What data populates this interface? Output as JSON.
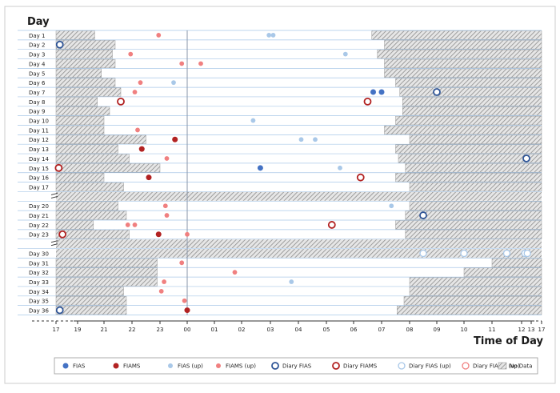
{
  "chart_data": {
    "type": "scatter",
    "ylabel": "Day",
    "xlabel": "Time of Day",
    "x_ticks": [
      "17",
      "19",
      "21",
      "22",
      "23",
      "00",
      "01",
      "02",
      "03",
      "04",
      "05",
      "06",
      "07",
      "08",
      "09",
      "10",
      "11",
      "12",
      "13",
      "17"
    ],
    "rows": [
      {
        "label": "Day 1",
        "nodata": [
          [
            17,
            20.3
          ],
          [
            6.65,
            17
          ]
        ]
      },
      {
        "label": "Day 2",
        "nodata": [
          [
            17,
            21.4
          ],
          [
            7.1,
            17
          ]
        ]
      },
      {
        "label": "Day 3",
        "nodata": [
          [
            17,
            21.3
          ],
          [
            6.85,
            17
          ]
        ]
      },
      {
        "label": "Day 4",
        "nodata": [
          [
            17,
            21.4
          ],
          [
            7.1,
            17
          ]
        ]
      },
      {
        "label": "Day 5",
        "nodata": [
          [
            17,
            20.8
          ],
          [
            7.1,
            17
          ]
        ]
      },
      {
        "label": "Day 6",
        "nodata": [
          [
            17,
            21.4
          ],
          [
            7.5,
            17
          ]
        ]
      },
      {
        "label": "Day 7",
        "nodata": [
          [
            17,
            21.6
          ],
          [
            7.65,
            17
          ]
        ]
      },
      {
        "label": "Day 8",
        "nodata": [
          [
            17,
            20.5
          ],
          [
            7.75,
            17
          ]
        ]
      },
      {
        "label": "Day 9",
        "nodata": [
          [
            17,
            21.2
          ],
          [
            7.75,
            17
          ]
        ]
      },
      {
        "label": "Day 10",
        "nodata": [
          [
            17,
            21.0
          ],
          [
            7.5,
            17
          ]
        ]
      },
      {
        "label": "Day 11",
        "nodata": [
          [
            17,
            21.0
          ],
          [
            7.1,
            17
          ]
        ]
      },
      {
        "label": "Day 12",
        "nodata": [
          [
            17,
            22.5
          ],
          [
            8.0,
            17
          ]
        ]
      },
      {
        "label": "Day 13",
        "nodata": [
          [
            17,
            21.5
          ],
          [
            7.5,
            17
          ]
        ]
      },
      {
        "label": "Day 14",
        "nodata": [
          [
            17,
            21.9
          ],
          [
            7.6,
            17
          ]
        ]
      },
      {
        "label": "Day 15",
        "nodata": [
          [
            17,
            23.0
          ],
          [
            7.85,
            17
          ]
        ]
      },
      {
        "label": "Day 16",
        "nodata": [
          [
            17,
            21.0
          ],
          [
            7.5,
            17
          ]
        ]
      },
      {
        "label": "Day 17",
        "nodata": [
          [
            17,
            21.7
          ],
          [
            8.0,
            17
          ]
        ]
      },
      {
        "label": "",
        "nodata": [
          [
            17,
            17
          ]
        ],
        "break": true
      },
      {
        "label": "Day 20",
        "nodata": [
          [
            17,
            21.5
          ],
          [
            8.0,
            17
          ]
        ]
      },
      {
        "label": "Day 21",
        "nodata": [
          [
            17,
            21.8
          ],
          [
            7.85,
            17
          ]
        ]
      },
      {
        "label": "Day 22",
        "nodata": [
          [
            17,
            20.2
          ],
          [
            7.5,
            17
          ]
        ]
      },
      {
        "label": "Day 23",
        "nodata": [
          [
            17,
            21.9
          ],
          [
            7.85,
            17
          ]
        ]
      },
      {
        "label": "",
        "nodata": [
          [
            17,
            17
          ]
        ],
        "break": true
      },
      {
        "label": "Day 30",
        "nodata": [
          [
            17,
            17
          ]
        ]
      },
      {
        "label": "Day 31",
        "nodata": [
          [
            17,
            22.9
          ],
          [
            11.0,
            17
          ]
        ]
      },
      {
        "label": "Day 32",
        "nodata": [
          [
            17,
            22.9
          ],
          [
            10.0,
            17
          ]
        ]
      },
      {
        "label": "Day 33",
        "nodata": [
          [
            17,
            22.9
          ],
          [
            8.0,
            17
          ]
        ]
      },
      {
        "label": "Day 34",
        "nodata": [
          [
            17,
            21.7
          ],
          [
            8.0,
            17
          ]
        ]
      },
      {
        "label": "Day 35",
        "nodata": [
          [
            17,
            21.8
          ],
          [
            7.8,
            17
          ]
        ]
      },
      {
        "label": "Day 36",
        "nodata": [
          [
            17,
            21.8
          ],
          [
            7.55,
            17
          ]
        ]
      }
    ],
    "points": [
      {
        "day": "Day 1",
        "time": 22.95,
        "type": "fiams_up"
      },
      {
        "day": "Day 1",
        "time": 2.95,
        "type": "fias_up"
      },
      {
        "day": "Day 1",
        "time": 3.1,
        "type": "fias_up"
      },
      {
        "day": "Day 2",
        "time": 17.35,
        "type": "diary_fias"
      },
      {
        "day": "Day 3",
        "time": 21.95,
        "type": "fiams_up"
      },
      {
        "day": "Day 3",
        "time": 5.7,
        "type": "fias_up"
      },
      {
        "day": "Day 4",
        "time": 23.8,
        "type": "fiams_up"
      },
      {
        "day": "Day 4",
        "time": 0.5,
        "type": "fiams_up"
      },
      {
        "day": "Day 6",
        "time": 22.3,
        "type": "fiams_up"
      },
      {
        "day": "Day 6",
        "time": 23.5,
        "type": "fias_up"
      },
      {
        "day": "Day 7",
        "time": 22.1,
        "type": "fiams_up"
      },
      {
        "day": "Day 7",
        "time": 6.7,
        "type": "fias"
      },
      {
        "day": "Day 7",
        "time": 7.0,
        "type": "fias"
      },
      {
        "day": "Day 7",
        "time": 9.0,
        "type": "diary_fias"
      },
      {
        "day": "Day 8",
        "time": 21.6,
        "type": "diary_fiams"
      },
      {
        "day": "Day 8",
        "time": 6.5,
        "type": "diary_fiams"
      },
      {
        "day": "Day 10",
        "time": 2.4,
        "type": "fias_up"
      },
      {
        "day": "Day 11",
        "time": 22.2,
        "type": "fiams_up"
      },
      {
        "day": "Day 12",
        "time": 23.55,
        "type": "fiams"
      },
      {
        "day": "Day 12",
        "time": 4.1,
        "type": "fias_up"
      },
      {
        "day": "Day 12",
        "time": 4.6,
        "type": "fias_up"
      },
      {
        "day": "Day 13",
        "time": 22.35,
        "type": "fiams"
      },
      {
        "day": "Day 14",
        "time": 23.25,
        "type": "fiams_up"
      },
      {
        "day": "Day 14",
        "time": 12.5,
        "type": "diary_fias"
      },
      {
        "day": "Day 15",
        "time": 17.25,
        "type": "diary_fiams"
      },
      {
        "day": "Day 15",
        "time": 2.65,
        "type": "fias"
      },
      {
        "day": "Day 15",
        "time": 5.5,
        "type": "fias_up"
      },
      {
        "day": "Day 16",
        "time": 22.6,
        "type": "fiams"
      },
      {
        "day": "Day 16",
        "time": 6.25,
        "type": "diary_fiams"
      },
      {
        "day": "Day 20",
        "time": 23.2,
        "type": "fiams_up"
      },
      {
        "day": "Day 20",
        "time": 7.35,
        "type": "fias_up"
      },
      {
        "day": "Day 21",
        "time": 23.25,
        "type": "fiams_up"
      },
      {
        "day": "Day 21",
        "time": 8.5,
        "type": "diary_fias"
      },
      {
        "day": "Day 22",
        "time": 21.85,
        "type": "fiams_up"
      },
      {
        "day": "Day 22",
        "time": 22.1,
        "type": "fiams_up"
      },
      {
        "day": "Day 22",
        "time": 5.2,
        "type": "diary_fiams"
      },
      {
        "day": "Day 23",
        "time": 17.6,
        "type": "diary_fiams"
      },
      {
        "day": "Day 23",
        "time": 22.95,
        "type": "fiams"
      },
      {
        "day": "Day 23",
        "time": 0.0,
        "type": "fiams_up"
      },
      {
        "day": "Day 30",
        "time": 8.5,
        "type": "diary_fias_up"
      },
      {
        "day": "Day 30",
        "time": 10.0,
        "type": "diary_fias_up"
      },
      {
        "day": "Day 30",
        "time": 11.5,
        "type": "diary_fias_up"
      },
      {
        "day": "Day 30",
        "time": 12.35,
        "type": "diary_fias_up"
      },
      {
        "day": "Day 30",
        "time": 12.6,
        "type": "diary_fias_up"
      },
      {
        "day": "Day 31",
        "time": 23.8,
        "type": "fiams_up"
      },
      {
        "day": "Day 32",
        "time": 1.75,
        "type": "fiams_up"
      },
      {
        "day": "Day 33",
        "time": 23.15,
        "type": "fiams_up"
      },
      {
        "day": "Day 33",
        "time": 3.75,
        "type": "fias_up"
      },
      {
        "day": "Day 34",
        "time": 23.05,
        "type": "fiams_up"
      },
      {
        "day": "Day 35",
        "time": 23.9,
        "type": "fiams_up"
      },
      {
        "day": "Day 36",
        "time": 17.35,
        "type": "diary_fias"
      },
      {
        "day": "Day 36",
        "time": 0.0,
        "type": "fiams"
      }
    ],
    "legend": [
      {
        "key": "fias",
        "label": "FIAS"
      },
      {
        "key": "fiams",
        "label": "FIAMS"
      },
      {
        "key": "fias_up",
        "label": "FIAS (up)"
      },
      {
        "key": "fiams_up",
        "label": "FIAMS (up)"
      },
      {
        "key": "diary_fias",
        "label": "Diary FIAS"
      },
      {
        "key": "diary_fiams",
        "label": "Diary FIAMS"
      },
      {
        "key": "diary_fias_up",
        "label": "Diary FIAS (up)"
      },
      {
        "key": "diary_fiams_up",
        "label": "Diary FIAMS (up)"
      },
      {
        "key": "nodata",
        "label": "No Data"
      }
    ],
    "colors": {
      "fias": "#4472c4",
      "fiams": "#b22222",
      "fias_up": "#a9c8e8",
      "fiams_up": "#f08080",
      "diary_fias": "#2f5597",
      "diary_fiams": "#b22222",
      "diary_fias_up": "#a9c8e8",
      "diary_fiams_up": "#f08080",
      "grid": "#a9c8e8",
      "midnight": "#8a96a8"
    },
    "legend_position": "bottom",
    "grid": true
  }
}
